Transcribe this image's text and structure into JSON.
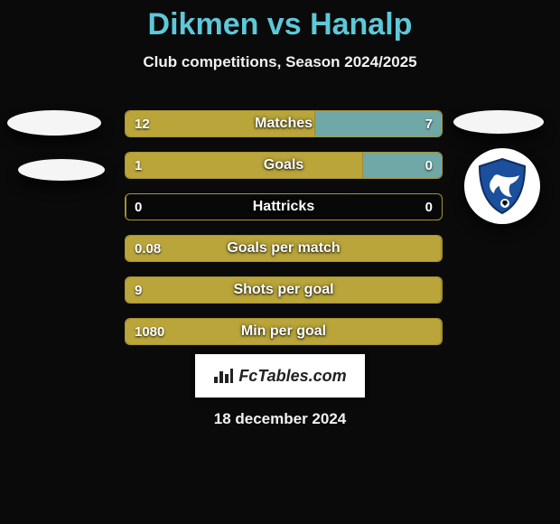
{
  "header": {
    "title": "Dikmen vs Hanalp",
    "subtitle": "Club competitions, Season 2024/2025"
  },
  "left_player": {
    "name": "Dikmen"
  },
  "right_player": {
    "name": "Hanalp",
    "badge": {
      "shield_fill": "#1c4f9c",
      "shield_stroke": "#0e2e63",
      "bird_fill": "#ffffff"
    }
  },
  "colors": {
    "title": "#5dc8d8",
    "bar_left": "#b9a53a",
    "bar_right": "#6fa8a6",
    "bar_border": "#a79434",
    "background": "#0a0a0a",
    "text": "#f2f2f2"
  },
  "stats": [
    {
      "label": "Matches",
      "left_val": "12",
      "right_val": "7",
      "left_pct": 60,
      "right_pct": 40
    },
    {
      "label": "Goals",
      "left_val": "1",
      "right_val": "0",
      "left_pct": 75,
      "right_pct": 25
    },
    {
      "label": "Hattricks",
      "left_val": "0",
      "right_val": "0",
      "left_pct": 0,
      "right_pct": 0
    },
    {
      "label": "Goals per match",
      "left_val": "0.08",
      "right_val": "",
      "left_pct": 100,
      "right_pct": 0
    },
    {
      "label": "Shots per goal",
      "left_val": "9",
      "right_val": "",
      "left_pct": 100,
      "right_pct": 0
    },
    {
      "label": "Min per goal",
      "left_val": "1080",
      "right_val": "",
      "left_pct": 100,
      "right_pct": 0
    }
  ],
  "footer": {
    "brand": "FcTables.com",
    "date": "18 december 2024"
  }
}
